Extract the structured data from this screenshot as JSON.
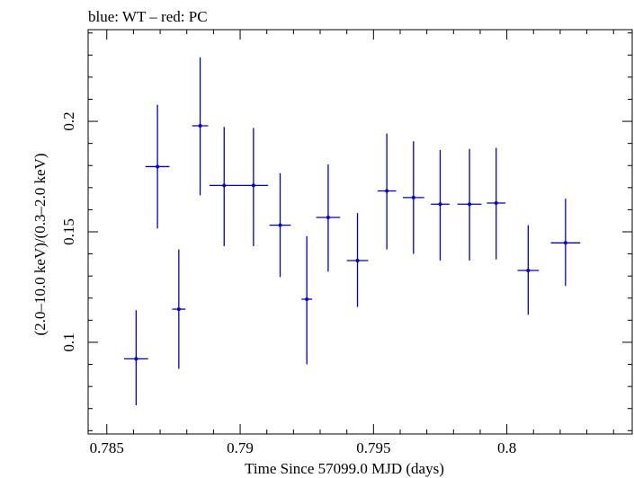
{
  "chart_data": {
    "type": "scatter",
    "title": "blue: WT – red: PC",
    "xlabel": "Time Since 57099.0 MJD (days)",
    "ylabel": "(2.0–10.0 keV)/(0.3–2.0 keV)",
    "xlim": [
      0.7843,
      0.8047
    ],
    "ylim": [
      0.0585,
      0.2415
    ],
    "x_ticks": [
      {
        "value": 0.785,
        "label": "0.785"
      },
      {
        "value": 0.79,
        "label": "0.79"
      },
      {
        "value": 0.795,
        "label": "0.795"
      },
      {
        "value": 0.8,
        "label": "0.8"
      }
    ],
    "y_ticks": [
      {
        "value": 0.1,
        "label": "0.1"
      },
      {
        "value": 0.15,
        "label": "0.15"
      },
      {
        "value": 0.2,
        "label": "0.2"
      }
    ],
    "grid": false,
    "series": [
      {
        "color": "#0000cc",
        "points": [
          {
            "x": 0.7861,
            "xerr": 0.00045,
            "y": 0.0925,
            "ylo": 0.0715,
            "yhi": 0.1145
          },
          {
            "x": 0.7869,
            "xerr": 0.00045,
            "y": 0.1795,
            "ylo": 0.1515,
            "yhi": 0.2075
          },
          {
            "x": 0.7877,
            "xerr": 0.00025,
            "y": 0.115,
            "ylo": 0.088,
            "yhi": 0.142
          },
          {
            "x": 0.7885,
            "xerr": 0.0003,
            "y": 0.198,
            "ylo": 0.1665,
            "yhi": 0.229
          },
          {
            "x": 0.7894,
            "xerr": 0.00055,
            "y": 0.171,
            "ylo": 0.1435,
            "yhi": 0.1975
          },
          {
            "x": 0.7905,
            "xerr": 0.00055,
            "y": 0.171,
            "ylo": 0.1435,
            "yhi": 0.197
          },
          {
            "x": 0.7915,
            "xerr": 0.0004,
            "y": 0.153,
            "ylo": 0.1295,
            "yhi": 0.1765
          },
          {
            "x": 0.7925,
            "xerr": 0.0002,
            "y": 0.1195,
            "ylo": 0.09,
            "yhi": 0.148
          },
          {
            "x": 0.7933,
            "xerr": 0.00045,
            "y": 0.1565,
            "ylo": 0.132,
            "yhi": 0.1805
          },
          {
            "x": 0.7944,
            "xerr": 0.0004,
            "y": 0.137,
            "ylo": 0.116,
            "yhi": 0.1585
          },
          {
            "x": 0.7955,
            "xerr": 0.00035,
            "y": 0.1685,
            "ylo": 0.142,
            "yhi": 0.1945
          },
          {
            "x": 0.7965,
            "xerr": 0.0004,
            "y": 0.1655,
            "ylo": 0.14,
            "yhi": 0.191
          },
          {
            "x": 0.7975,
            "xerr": 0.00035,
            "y": 0.1625,
            "ylo": 0.137,
            "yhi": 0.187
          },
          {
            "x": 0.7986,
            "xerr": 0.00045,
            "y": 0.1625,
            "ylo": 0.137,
            "yhi": 0.1875
          },
          {
            "x": 0.7996,
            "xerr": 0.00035,
            "y": 0.163,
            "ylo": 0.1375,
            "yhi": 0.188
          },
          {
            "x": 0.8008,
            "xerr": 0.0004,
            "y": 0.1325,
            "ylo": 0.1125,
            "yhi": 0.153
          },
          {
            "x": 0.8022,
            "xerr": 0.00055,
            "y": 0.145,
            "ylo": 0.1255,
            "yhi": 0.165
          }
        ]
      }
    ]
  }
}
